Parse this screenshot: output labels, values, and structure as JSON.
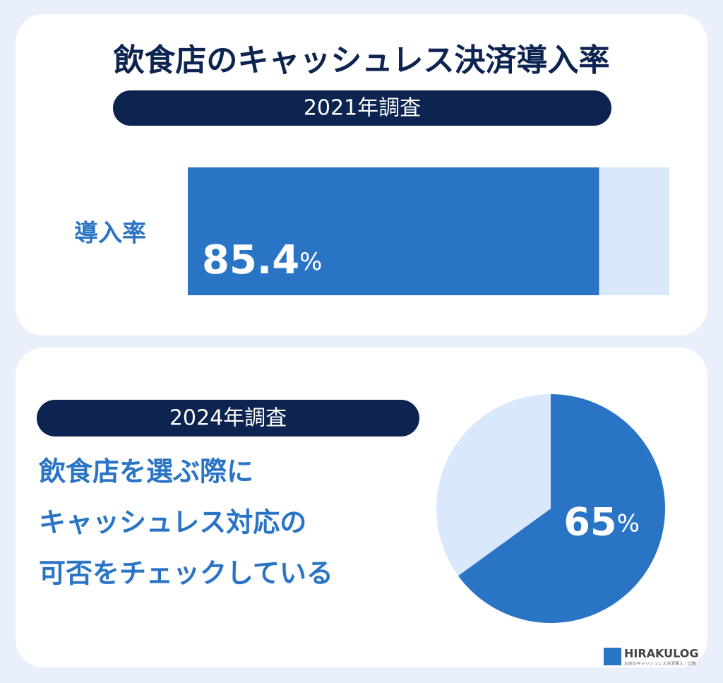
{
  "title": "飲食店のキャッシュレス決済導入率",
  "chart_data": [
    {
      "type": "bar",
      "orientation": "horizontal",
      "subtitle": "2021年調査",
      "categories": [
        "導入率"
      ],
      "values": [
        85.4
      ],
      "value_labels": [
        "85.4%"
      ],
      "color": "#2a74c5",
      "track_color": "#d9e8fb",
      "xlim": [
        0,
        100
      ]
    },
    {
      "type": "pie",
      "subtitle": "2024年調査",
      "caption": [
        "飲食店を選ぶ際に",
        "キャッシュレス対応の",
        "可否をチェックしている"
      ],
      "values": [
        65,
        35
      ],
      "value_labels": [
        "65%",
        null
      ],
      "colors": [
        "#2a74c5",
        "#d9e8fb"
      ]
    }
  ],
  "logo": {
    "name": "HIRAKULOG",
    "tagline": "お店のキャッシュレス決済導入・比較"
  }
}
